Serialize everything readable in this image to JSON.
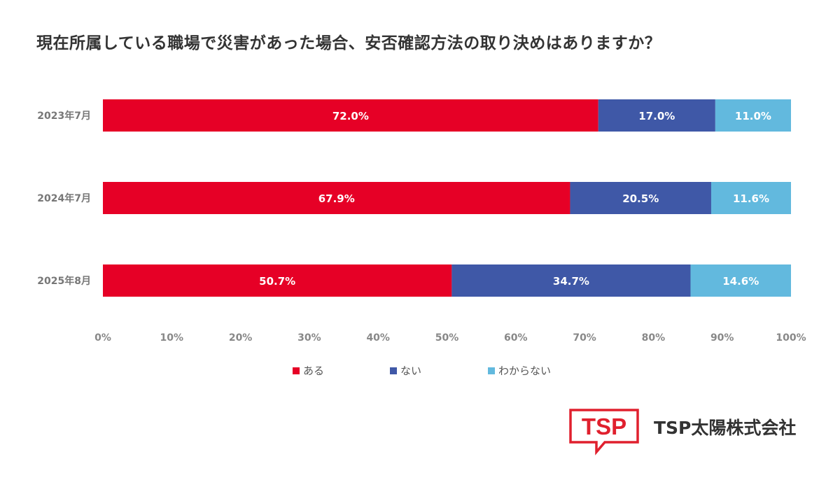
{
  "chart_data": {
    "type": "bar",
    "orientation": "horizontal",
    "stacked": true,
    "title": "現在所属している職場で災害があった場合、安否確認方法の取り決めはありますか？",
    "categories": [
      "2023年7月",
      "2024年7月",
      "2025年8月"
    ],
    "series": [
      {
        "name": "ある",
        "values": [
          72.0,
          67.9,
          50.7
        ],
        "color": "#E60026"
      },
      {
        "name": "ない",
        "values": [
          17.0,
          20.5,
          34.7
        ],
        "color": "#3F58A7"
      },
      {
        "name": "わからない",
        "values": [
          11.0,
          11.6,
          14.6
        ],
        "color": "#62B9DE"
      }
    ],
    "data_labels": [
      [
        "72.0%",
        "17.0%",
        "11.0%"
      ],
      [
        "67.9%",
        "20.5%",
        "11.6%"
      ],
      [
        "50.7%",
        "34.7%",
        "14.6%"
      ]
    ],
    "xlim": [
      0,
      100
    ],
    "x_ticks": [
      0,
      10,
      20,
      30,
      40,
      50,
      60,
      70,
      80,
      90,
      100
    ],
    "x_tick_labels": [
      "0%",
      "10%",
      "20%",
      "30%",
      "40%",
      "50%",
      "60%",
      "70%",
      "80%",
      "90%",
      "100%"
    ],
    "grid": false,
    "legend_position": "bottom"
  },
  "brand": {
    "logo_text": "TSP",
    "company_name": "TSP太陽株式会社",
    "color": "#E0202E"
  }
}
